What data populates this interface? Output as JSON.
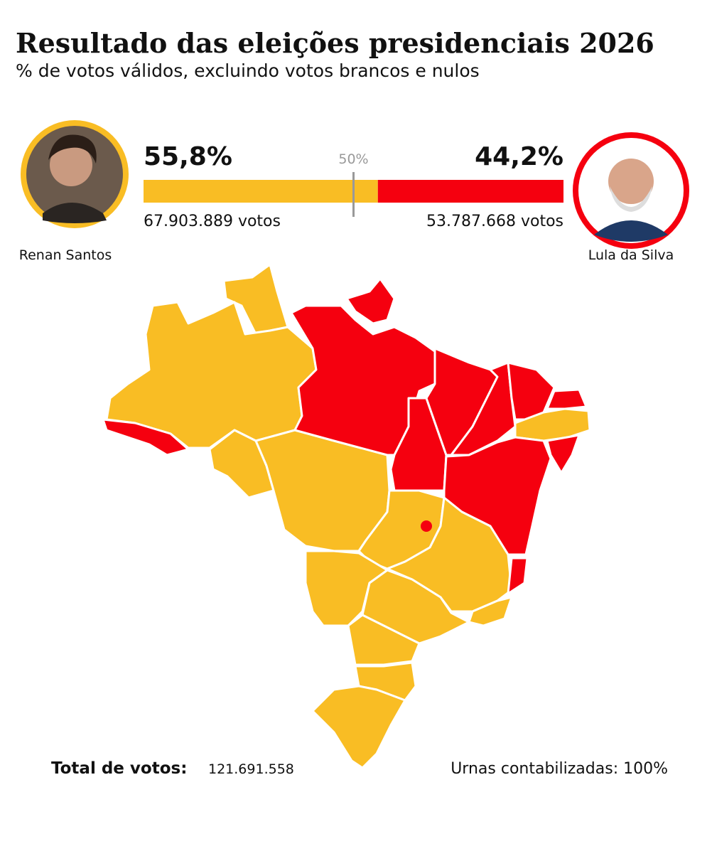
{
  "header": {
    "title": "Resultado das eleições presidenciais 2026",
    "subtitle": "% de votos válidos, excluindo votos brancos e nulos"
  },
  "candidates": [
    {
      "name": "Renan Santos",
      "share": {
        "value": 55.8,
        "label": "55,8%"
      },
      "votes": "67.903.889 votos",
      "color": "#f9bd24"
    },
    {
      "name": "Lula da Silva",
      "share": {
        "value": 44.2,
        "label": "44,2%"
      },
      "votes": "53.787.668 votos",
      "color": "#f5000f"
    }
  ],
  "midline": {
    "value": 50,
    "label": "50%"
  },
  "footer": {
    "total_label": "Total de votos:",
    "total": "121.691.558",
    "urns": "Urnas contabilizadas: 100%"
  }
}
